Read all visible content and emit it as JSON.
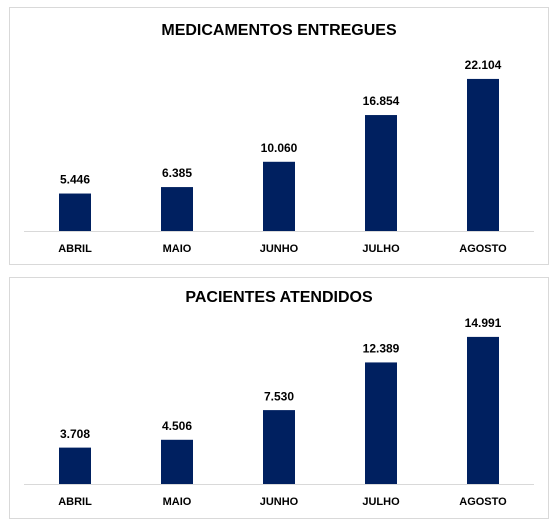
{
  "chart_data": [
    {
      "type": "bar",
      "title": "MEDICAMENTOS ENTREGUES",
      "categories": [
        "ABRIL",
        "MAIO",
        "JUNHO",
        "JULHO",
        "AGOSTO"
      ],
      "values": [
        5446,
        6385,
        10060,
        16854,
        22104
      ],
      "value_labels": [
        "5.446",
        "6.385",
        "10.060",
        "16.854",
        "22.104"
      ],
      "color": "#002060",
      "ylim": [
        0,
        25000
      ]
    },
    {
      "type": "bar",
      "title": "PACIENTES ATENDIDOS",
      "categories": [
        "ABRIL",
        "MAIO",
        "JUNHO",
        "JULHO",
        "AGOSTO"
      ],
      "values": [
        3708,
        4506,
        7530,
        12389,
        14991
      ],
      "value_labels": [
        "3.708",
        "4.506",
        "7.530",
        "12.389",
        "14.991"
      ],
      "color": "#002060",
      "ylim": [
        0,
        16000
      ]
    }
  ]
}
